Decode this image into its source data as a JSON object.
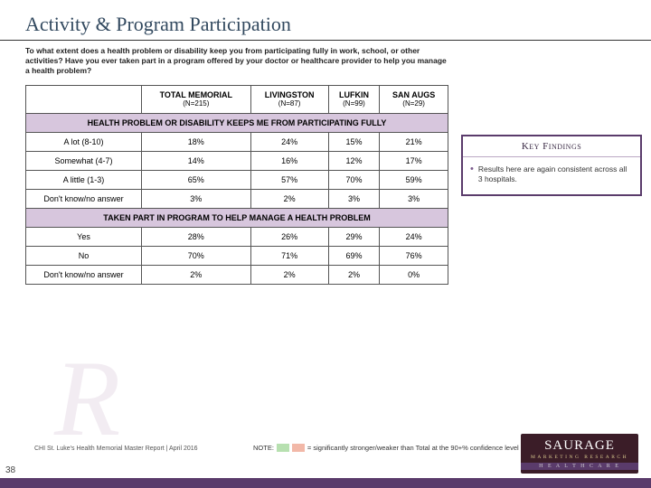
{
  "title": "Activity & Program Participation",
  "question": "To what extent does a health problem or disability keep you from participating fully in work, school, or other activities?\nHave you ever taken part in a program offered by your doctor or healthcare provider to help you manage a health problem?",
  "columns": [
    {
      "label": "TOTAL MEMORIAL",
      "n": "(N=215)"
    },
    {
      "label": "LIVING­STON",
      "n": "(N=87)"
    },
    {
      "label": "LUFKIN",
      "n": "(N=99)"
    },
    {
      "label": "SAN AUGS",
      "n": "(N=29)"
    }
  ],
  "sections": [
    {
      "header": "HEALTH PROBLEM OR DISABILITY KEEPS ME FROM PARTICIPATING FULLY",
      "rows": [
        {
          "label": "A lot (8-10)",
          "cells": [
            "18%",
            "24%",
            "15%",
            "21%"
          ]
        },
        {
          "label": "Somewhat (4-7)",
          "cells": [
            "14%",
            "16%",
            "12%",
            "17%"
          ]
        },
        {
          "label": "A little (1-3)",
          "cells": [
            "65%",
            "57%",
            "70%",
            "59%"
          ]
        },
        {
          "label": "Don't know/no answer",
          "cells": [
            "3%",
            "2%",
            "3%",
            "3%"
          ]
        }
      ]
    },
    {
      "header": "TAKEN PART IN PROGRAM TO HELP MANAGE A HEALTH PROBLEM",
      "rows": [
        {
          "label": "Yes",
          "cells": [
            "28%",
            "26%",
            "29%",
            "24%"
          ]
        },
        {
          "label": "No",
          "cells": [
            "70%",
            "71%",
            "69%",
            "76%"
          ]
        },
        {
          "label": "Don't know/no answer",
          "cells": [
            "2%",
            "2%",
            "2%",
            "0%"
          ]
        }
      ]
    }
  ],
  "findings": {
    "title": "Key Findings",
    "bullets": [
      "Results here are again consistent across all 3 hospitals."
    ]
  },
  "note": {
    "prefix": "NOTE:",
    "text": "= significantly stronger/weaker than Total at the 90+% confidence level"
  },
  "footer_source": "CHI St. Luke's Health Memorial Master Report | April 2016",
  "page_number": "38",
  "logo": {
    "name": "SAURAGE",
    "sub": "MARKETING RESEARCH",
    "tag": "H E A L T H C A R E"
  },
  "colors": {
    "section_bg": "#d7c6dd",
    "border": "#555555",
    "accent": "#5a3b6b",
    "title": "#32495f",
    "sw_green": "#b7e0b0",
    "sw_red": "#f2b8a8"
  }
}
